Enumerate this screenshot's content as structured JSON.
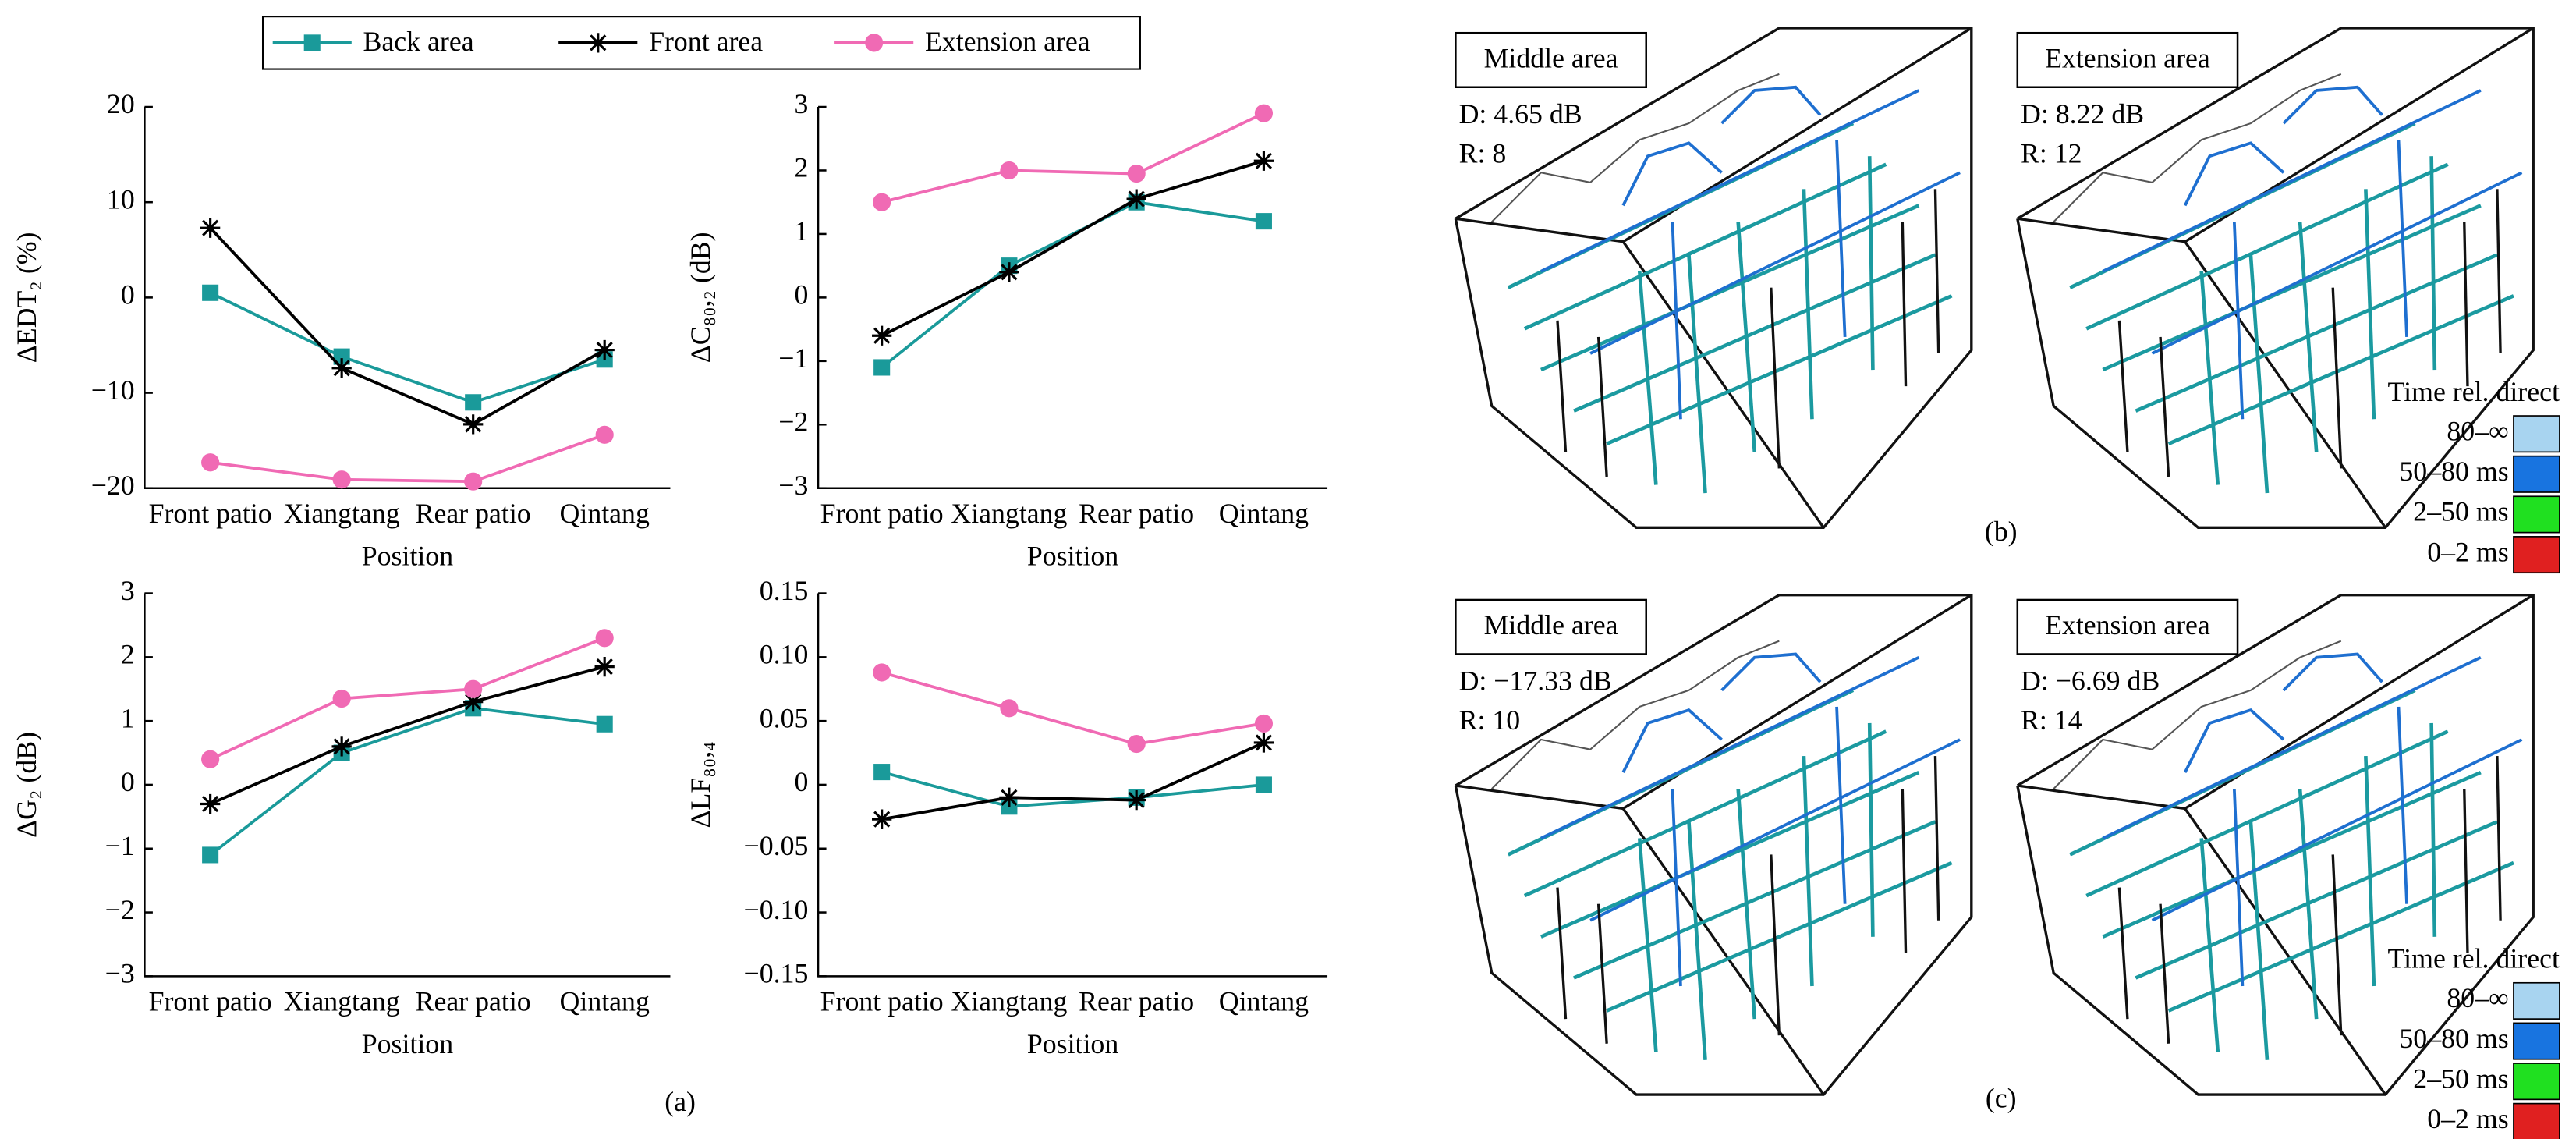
{
  "chart_data": [
    {
      "type": "line",
      "ylabel": "ΔEDT₂ (%)",
      "xlabel": "Position",
      "categories": [
        "Front patio",
        "Xiangtang",
        "Rear patio",
        "Qintang"
      ],
      "ylim": [
        -20,
        20
      ],
      "yticks": [
        {
          "value": -20,
          "label": "−20"
        },
        {
          "value": -10,
          "label": "−10"
        },
        0,
        10,
        20
      ],
      "series": [
        {
          "name": "Back area",
          "color": "#1a9a9a",
          "marker": "square",
          "values": [
            0.5,
            -6.2,
            -11,
            -6.5
          ]
        },
        {
          "name": "Front area",
          "color": "#000000",
          "marker": "star",
          "values": [
            7.3,
            -7.4,
            -13.3,
            -5.5
          ]
        },
        {
          "name": "Extension area",
          "color": "#f06ab4",
          "marker": "circle",
          "values": [
            -17.3,
            -19.1,
            -19.3,
            -14.4
          ]
        }
      ]
    },
    {
      "type": "line",
      "ylabel": "ΔC₈₀,₂ (dB)",
      "xlabel": "Position",
      "categories": [
        "Front patio",
        "Xiangtang",
        "Rear patio",
        "Qintang"
      ],
      "ylim": [
        -3,
        3
      ],
      "yticks": [
        {
          "value": -3,
          "label": "−3"
        },
        {
          "value": -2,
          "label": "−2"
        },
        {
          "value": -1,
          "label": "−1"
        },
        0,
        1,
        2,
        3
      ],
      "series": [
        {
          "name": "Back area",
          "color": "#1a9a9a",
          "marker": "square",
          "values": [
            -1.1,
            0.5,
            1.5,
            1.2
          ]
        },
        {
          "name": "Front area",
          "color": "#000000",
          "marker": "star",
          "values": [
            -0.6,
            0.4,
            1.55,
            2.15
          ]
        },
        {
          "name": "Extension area",
          "color": "#f06ab4",
          "marker": "circle",
          "values": [
            1.5,
            2.0,
            1.95,
            2.9
          ]
        }
      ]
    },
    {
      "type": "line",
      "ylabel": "ΔG₂ (dB)",
      "xlabel": "Position",
      "categories": [
        "Front patio",
        "Xiangtang",
        "Rear patio",
        "Qintang"
      ],
      "ylim": [
        -3,
        3
      ],
      "yticks": [
        {
          "value": -3,
          "label": "−3"
        },
        {
          "value": -2,
          "label": "−2"
        },
        {
          "value": -1,
          "label": "−1"
        },
        0,
        1,
        2,
        3
      ],
      "series": [
        {
          "name": "Back area",
          "color": "#1a9a9a",
          "marker": "square",
          "values": [
            -1.1,
            0.5,
            1.2,
            0.95
          ]
        },
        {
          "name": "Front area",
          "color": "#000000",
          "marker": "star",
          "values": [
            -0.3,
            0.6,
            1.3,
            1.85
          ]
        },
        {
          "name": "Extension area",
          "color": "#f06ab4",
          "marker": "circle",
          "values": [
            0.4,
            1.35,
            1.5,
            2.3
          ]
        }
      ]
    },
    {
      "type": "line",
      "ylabel": "ΔLF₈₀,₄",
      "xlabel": "Position",
      "categories": [
        "Front patio",
        "Xiangtang",
        "Rear patio",
        "Qintang"
      ],
      "ylim": [
        -0.15,
        0.15
      ],
      "yticks": [
        {
          "value": -0.15,
          "label": "−0.15"
        },
        {
          "value": -0.1,
          "label": "−0.10"
        },
        {
          "value": -0.05,
          "label": "−0.05"
        },
        0,
        0.05,
        {
          "value": 0.1,
          "label": "0.10"
        },
        0.15
      ],
      "series": [
        {
          "name": "Back area",
          "color": "#1a9a9a",
          "marker": "square",
          "values": [
            0.01,
            -0.017,
            -0.01,
            0
          ]
        },
        {
          "name": "Front area",
          "color": "#000000",
          "marker": "star",
          "values": [
            -0.027,
            -0.01,
            -0.012,
            0.033
          ]
        },
        {
          "name": "Extension area",
          "color": "#f06ab4",
          "marker": "circle",
          "values": [
            0.088,
            0.06,
            0.032,
            0.048
          ]
        }
      ]
    }
  ],
  "renderings": [
    {
      "title": "Middle area",
      "d": "D: 4.65 dB",
      "r": "R: 8"
    },
    {
      "title": "Extension area",
      "d": "D: 8.22 dB",
      "r": "R: 12"
    },
    {
      "title": "Middle area",
      "d": "D: −17.33 dB",
      "r": "R: 10"
    },
    {
      "title": "Extension area",
      "d": "D: −6.69 dB",
      "r": "R: 14"
    }
  ],
  "time_legend": {
    "title": "Time rel. direct",
    "items": [
      "80–∞",
      "50–80 ms",
      "2–50 ms",
      "0–2 ms"
    ],
    "colors": [
      "#a8d4f0",
      "#1874e0",
      "#20e020",
      "#e02020"
    ]
  },
  "panel_labels": [
    "(a)",
    "(b)",
    "(c)"
  ]
}
